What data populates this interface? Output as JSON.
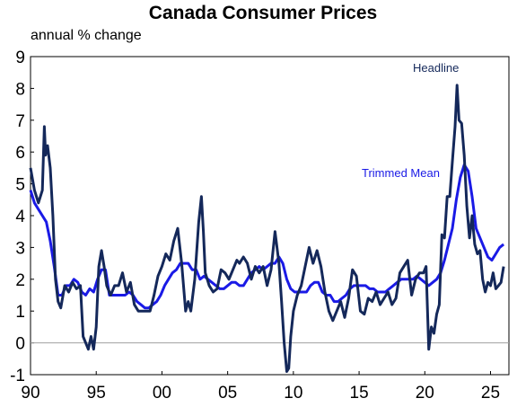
{
  "chart_data": {
    "type": "line",
    "title": "Canada Consumer Prices",
    "subtitle": "annual % change",
    "xlabel": "",
    "ylabel": "",
    "xlim": [
      1990.0,
      2026.4
    ],
    "ylim": [
      -1,
      9
    ],
    "y_ticks": [
      "9",
      "8",
      "7",
      "6",
      "5",
      "4",
      "3",
      "2",
      "1",
      "0",
      "-1"
    ],
    "x_ticks": [
      "90",
      "95",
      "00",
      "05",
      "10",
      "15",
      "20",
      "25"
    ],
    "x_tick_values": [
      1990,
      1995,
      2000,
      2005,
      2010,
      2015,
      2020,
      2025
    ],
    "grid": false,
    "zero_line": true,
    "annotations": [
      {
        "text": "Headline",
        "series": "Headline"
      },
      {
        "text": "Trimmed Mean",
        "series": "Trimmed Mean"
      }
    ],
    "series": [
      {
        "name": "Headline",
        "color": "#14285a",
        "x": [
          1990.0,
          1990.3,
          1990.6,
          1990.9,
          1991.05,
          1991.15,
          1991.3,
          1991.5,
          1991.7,
          1991.9,
          1992.1,
          1992.3,
          1992.6,
          1992.9,
          1993.2,
          1993.5,
          1993.8,
          1994.0,
          1994.2,
          1994.4,
          1994.6,
          1994.8,
          1995.0,
          1995.2,
          1995.4,
          1995.6,
          1995.8,
          1996.1,
          1996.4,
          1996.7,
          1997.0,
          1997.3,
          1997.6,
          1997.9,
          1998.2,
          1998.5,
          1998.8,
          1999.1,
          1999.4,
          1999.7,
          2000.0,
          2000.3,
          2000.6,
          2000.9,
          2001.2,
          2001.5,
          2001.8,
          2002.0,
          2002.2,
          2002.5,
          2002.8,
          2003.0,
          2003.15,
          2003.3,
          2003.6,
          2003.9,
          2004.2,
          2004.5,
          2004.8,
          2005.1,
          2005.4,
          2005.7,
          2005.9,
          2006.2,
          2006.5,
          2006.8,
          2007.1,
          2007.4,
          2007.7,
          2008.0,
          2008.3,
          2008.6,
          2008.9,
          2009.1,
          2009.3,
          2009.5,
          2009.65,
          2009.8,
          2010.0,
          2010.3,
          2010.6,
          2010.9,
          2011.2,
          2011.5,
          2011.8,
          2012.1,
          2012.4,
          2012.7,
          2013.0,
          2013.3,
          2013.6,
          2013.9,
          2014.2,
          2014.5,
          2014.8,
          2015.1,
          2015.4,
          2015.7,
          2016.0,
          2016.3,
          2016.6,
          2016.9,
          2017.2,
          2017.5,
          2017.8,
          2018.1,
          2018.4,
          2018.7,
          2019.0,
          2019.3,
          2019.6,
          2019.9,
          2020.1,
          2020.3,
          2020.5,
          2020.7,
          2020.9,
          2021.1,
          2021.3,
          2021.5,
          2021.7,
          2021.9,
          2022.1,
          2022.3,
          2022.45,
          2022.6,
          2022.8,
          2023.0,
          2023.2,
          2023.4,
          2023.6,
          2023.8,
          2024.0,
          2024.2,
          2024.4,
          2024.6,
          2024.8,
          2025.0,
          2025.2,
          2025.4,
          2025.6,
          2025.8,
          2026.0
        ],
        "y": [
          5.5,
          4.8,
          4.4,
          4.8,
          6.8,
          5.9,
          6.2,
          5.5,
          4.0,
          2.0,
          1.3,
          1.1,
          1.8,
          1.6,
          1.9,
          1.7,
          1.8,
          0.2,
          0.0,
          -0.2,
          0.2,
          -0.2,
          0.5,
          2.4,
          2.9,
          2.4,
          1.8,
          1.5,
          1.8,
          1.8,
          2.2,
          1.6,
          1.9,
          1.2,
          1.0,
          1.0,
          1.0,
          1.0,
          1.5,
          2.1,
          2.4,
          2.8,
          2.6,
          3.2,
          3.6,
          2.5,
          1.0,
          1.3,
          1.0,
          2.0,
          3.8,
          4.6,
          3.5,
          2.2,
          1.8,
          1.6,
          1.7,
          2.3,
          2.2,
          2.0,
          2.3,
          2.6,
          2.5,
          2.7,
          2.5,
          2.0,
          2.4,
          2.2,
          2.4,
          1.8,
          2.3,
          3.5,
          2.5,
          1.3,
          0.0,
          -0.9,
          -0.8,
          0.2,
          1.0,
          1.5,
          1.8,
          2.4,
          3.0,
          2.5,
          2.9,
          2.4,
          1.6,
          1.0,
          0.7,
          1.0,
          1.3,
          0.8,
          1.4,
          2.3,
          2.1,
          1.0,
          0.9,
          1.4,
          1.3,
          1.6,
          1.2,
          1.4,
          1.6,
          1.2,
          1.4,
          2.2,
          2.4,
          2.6,
          1.5,
          2.0,
          2.2,
          2.2,
          2.4,
          -0.2,
          0.5,
          0.3,
          0.9,
          1.2,
          3.4,
          3.3,
          4.6,
          4.6,
          5.7,
          6.8,
          8.1,
          7.0,
          6.9,
          5.9,
          4.3,
          3.3,
          4.0,
          3.1,
          2.8,
          2.9,
          2.0,
          1.6,
          1.9,
          1.8,
          2.2,
          1.7,
          1.8,
          1.9,
          2.4
        ]
      },
      {
        "name": "Trimmed Mean",
        "color": "#1a1ae6",
        "x": [
          1990.0,
          1990.3,
          1990.6,
          1990.9,
          1991.2,
          1991.5,
          1991.8,
          1992.1,
          1992.4,
          1992.7,
          1993.0,
          1993.3,
          1993.6,
          1993.9,
          1994.2,
          1994.5,
          1994.8,
          1995.1,
          1995.4,
          1995.7,
          1996.0,
          1996.3,
          1996.6,
          1996.9,
          1997.2,
          1997.5,
          1997.8,
          1998.1,
          1998.4,
          1998.7,
          1999.0,
          1999.3,
          1999.6,
          1999.9,
          2000.2,
          2000.5,
          2000.8,
          2001.1,
          2001.4,
          2001.7,
          2002.0,
          2002.3,
          2002.6,
          2002.9,
          2003.2,
          2003.5,
          2003.8,
          2004.1,
          2004.4,
          2004.7,
          2005.0,
          2005.3,
          2005.6,
          2005.9,
          2006.2,
          2006.5,
          2006.8,
          2007.1,
          2007.4,
          2007.7,
          2008.0,
          2008.3,
          2008.6,
          2008.9,
          2009.2,
          2009.5,
          2009.8,
          2010.1,
          2010.4,
          2010.7,
          2011.0,
          2011.3,
          2011.6,
          2011.9,
          2012.2,
          2012.5,
          2012.8,
          2013.1,
          2013.4,
          2013.7,
          2014.0,
          2014.3,
          2014.6,
          2014.9,
          2015.2,
          2015.5,
          2015.8,
          2016.1,
          2016.4,
          2016.7,
          2017.0,
          2017.3,
          2017.6,
          2017.9,
          2018.2,
          2018.5,
          2018.8,
          2019.1,
          2019.4,
          2019.7,
          2020.0,
          2020.3,
          2020.6,
          2020.9,
          2021.2,
          2021.5,
          2021.8,
          2022.1,
          2022.4,
          2022.7,
          2023.0,
          2023.3,
          2023.6,
          2023.9,
          2024.2,
          2024.5,
          2024.8,
          2025.1,
          2025.4,
          2025.7,
          2026.0
        ],
        "y": [
          4.8,
          4.4,
          4.2,
          4.0,
          3.8,
          3.2,
          2.4,
          1.5,
          1.5,
          1.8,
          1.8,
          2.0,
          1.9,
          1.6,
          1.5,
          1.7,
          1.6,
          2.0,
          2.3,
          2.3,
          1.5,
          1.5,
          1.5,
          1.5,
          1.5,
          1.6,
          1.5,
          1.3,
          1.2,
          1.1,
          1.1,
          1.2,
          1.3,
          1.5,
          1.8,
          2.0,
          2.2,
          2.3,
          2.5,
          2.5,
          2.5,
          2.3,
          2.3,
          2.0,
          2.1,
          2.0,
          1.9,
          1.8,
          1.7,
          1.7,
          1.8,
          1.9,
          1.9,
          1.8,
          1.8,
          2.0,
          2.2,
          2.3,
          2.4,
          2.3,
          2.4,
          2.5,
          2.5,
          2.7,
          2.5,
          2.0,
          1.7,
          1.6,
          1.6,
          1.6,
          1.6,
          1.8,
          1.9,
          1.9,
          1.6,
          1.5,
          1.5,
          1.3,
          1.3,
          1.4,
          1.5,
          1.7,
          1.8,
          1.8,
          1.8,
          1.8,
          1.7,
          1.7,
          1.6,
          1.6,
          1.6,
          1.7,
          1.8,
          1.9,
          2.0,
          2.0,
          2.0,
          2.0,
          2.1,
          2.0,
          1.9,
          1.8,
          1.9,
          2.0,
          2.2,
          2.6,
          3.1,
          3.6,
          4.5,
          5.2,
          5.6,
          5.4,
          4.6,
          3.6,
          3.3,
          3.0,
          2.7,
          2.6,
          2.8,
          3.0,
          3.1
        ]
      }
    ]
  }
}
